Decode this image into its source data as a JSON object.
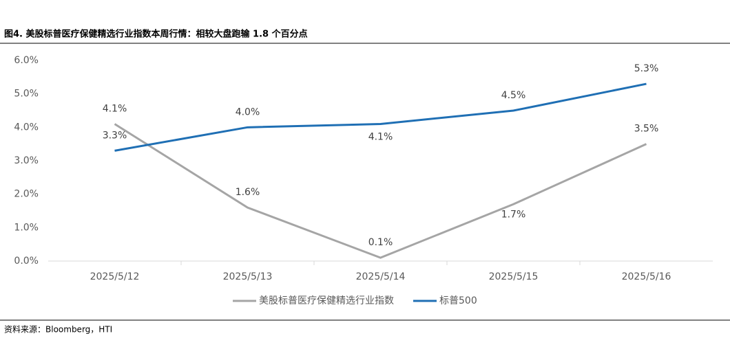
{
  "header": {
    "title": "图4.  美股标普医疗保健精选行业指数本周行情：相较大盘跑输 1.8 个百分点"
  },
  "chart_data": {
    "type": "line",
    "categories": [
      "2025/5/12",
      "2025/5/13",
      "2025/5/14",
      "2025/5/15",
      "2025/5/16"
    ],
    "series": [
      {
        "name": "美股标普医疗保健精选行业指数",
        "color": "#a5a5a5",
        "values": [
          4.1,
          1.6,
          0.1,
          1.7,
          3.5
        ],
        "value_labels": [
          "4.1%",
          "1.6%",
          "0.1%",
          "1.7%",
          "3.5%"
        ]
      },
      {
        "name": "标普500",
        "color": "#1f6fb4",
        "values": [
          3.3,
          4.0,
          4.1,
          4.5,
          5.3
        ],
        "value_labels": [
          "3.3%",
          "4.0%",
          "4.1%",
          "4.5%",
          "5.3%"
        ]
      }
    ],
    "ylim": [
      0,
      6
    ],
    "yticks": [
      {
        "value": 0,
        "label": "0.0%"
      },
      {
        "value": 1,
        "label": "1.0%"
      },
      {
        "value": 2,
        "label": "2.0%"
      },
      {
        "value": 3,
        "label": "3.0%"
      },
      {
        "value": 4,
        "label": "4.0%"
      },
      {
        "value": 5,
        "label": "5.0%"
      },
      {
        "value": 6,
        "label": "6.0%"
      }
    ],
    "grid": false,
    "legend": "bottom"
  },
  "footer": {
    "source": "资料来源：Bloomberg，HTI"
  }
}
